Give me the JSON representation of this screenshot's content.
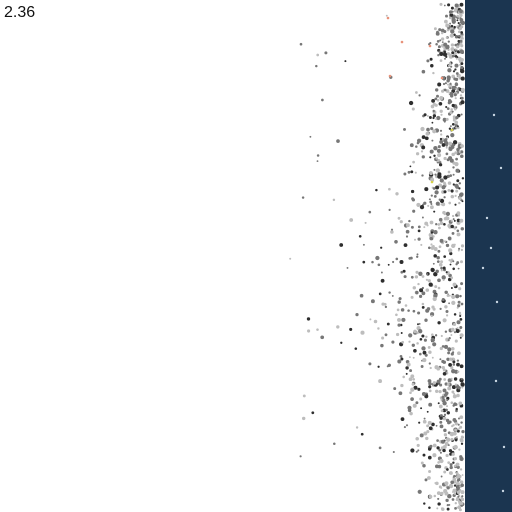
{
  "hud": {
    "readout": "2.36"
  },
  "colors": {
    "background": "#ffffff",
    "wall": "#1b3550",
    "particle_dark": "#2e2e2e",
    "particle_mid": "#777777",
    "particle_light": "#bdbdbd",
    "particle_accent_red": "#e8927a",
    "particle_accent_yellow": "#d6d04a",
    "wall_speck": "#c9d6e3"
  },
  "scene": {
    "description_hidden": false
  }
}
